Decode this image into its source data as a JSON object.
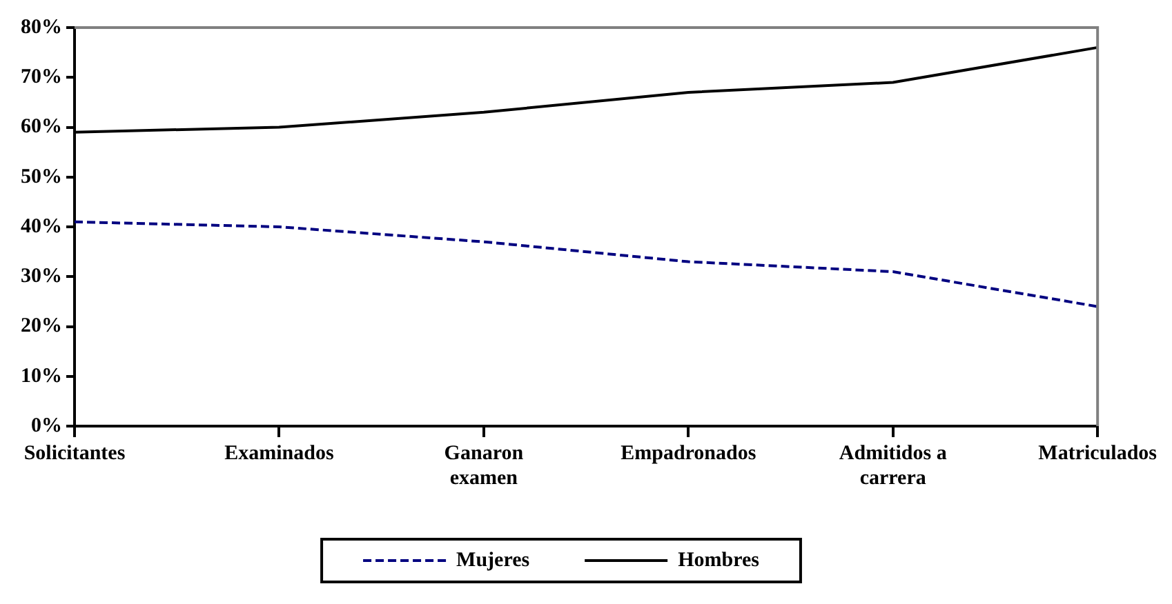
{
  "chart_data": {
    "type": "line",
    "categories": [
      "Solicitantes",
      "Examinados",
      "Ganaron examen",
      "Empadronados",
      "Admitidos a carrera",
      "Matriculados"
    ],
    "series": [
      {
        "name": "Mujeres",
        "color": "#000080",
        "values": [
          41,
          40,
          37,
          33,
          31,
          24
        ],
        "line_style": "dashed"
      },
      {
        "name": "Hombres",
        "color": "#000000",
        "values": [
          59,
          60,
          63,
          67,
          69,
          76
        ],
        "line_style": "solid"
      }
    ],
    "ylim": [
      0,
      80
    ],
    "yticks": [
      {
        "value": 0,
        "label": "0%"
      },
      {
        "value": 10,
        "label": "10%"
      },
      {
        "value": 20,
        "label": "20%"
      },
      {
        "value": 30,
        "label": "30%"
      },
      {
        "value": 40,
        "label": "40%"
      },
      {
        "value": 50,
        "label": "50%"
      },
      {
        "value": 60,
        "label": "60%"
      },
      {
        "value": 70,
        "label": "70%"
      },
      {
        "value": 80,
        "label": "80%"
      }
    ],
    "grid": false,
    "legend": "bottom",
    "marker": "none"
  }
}
